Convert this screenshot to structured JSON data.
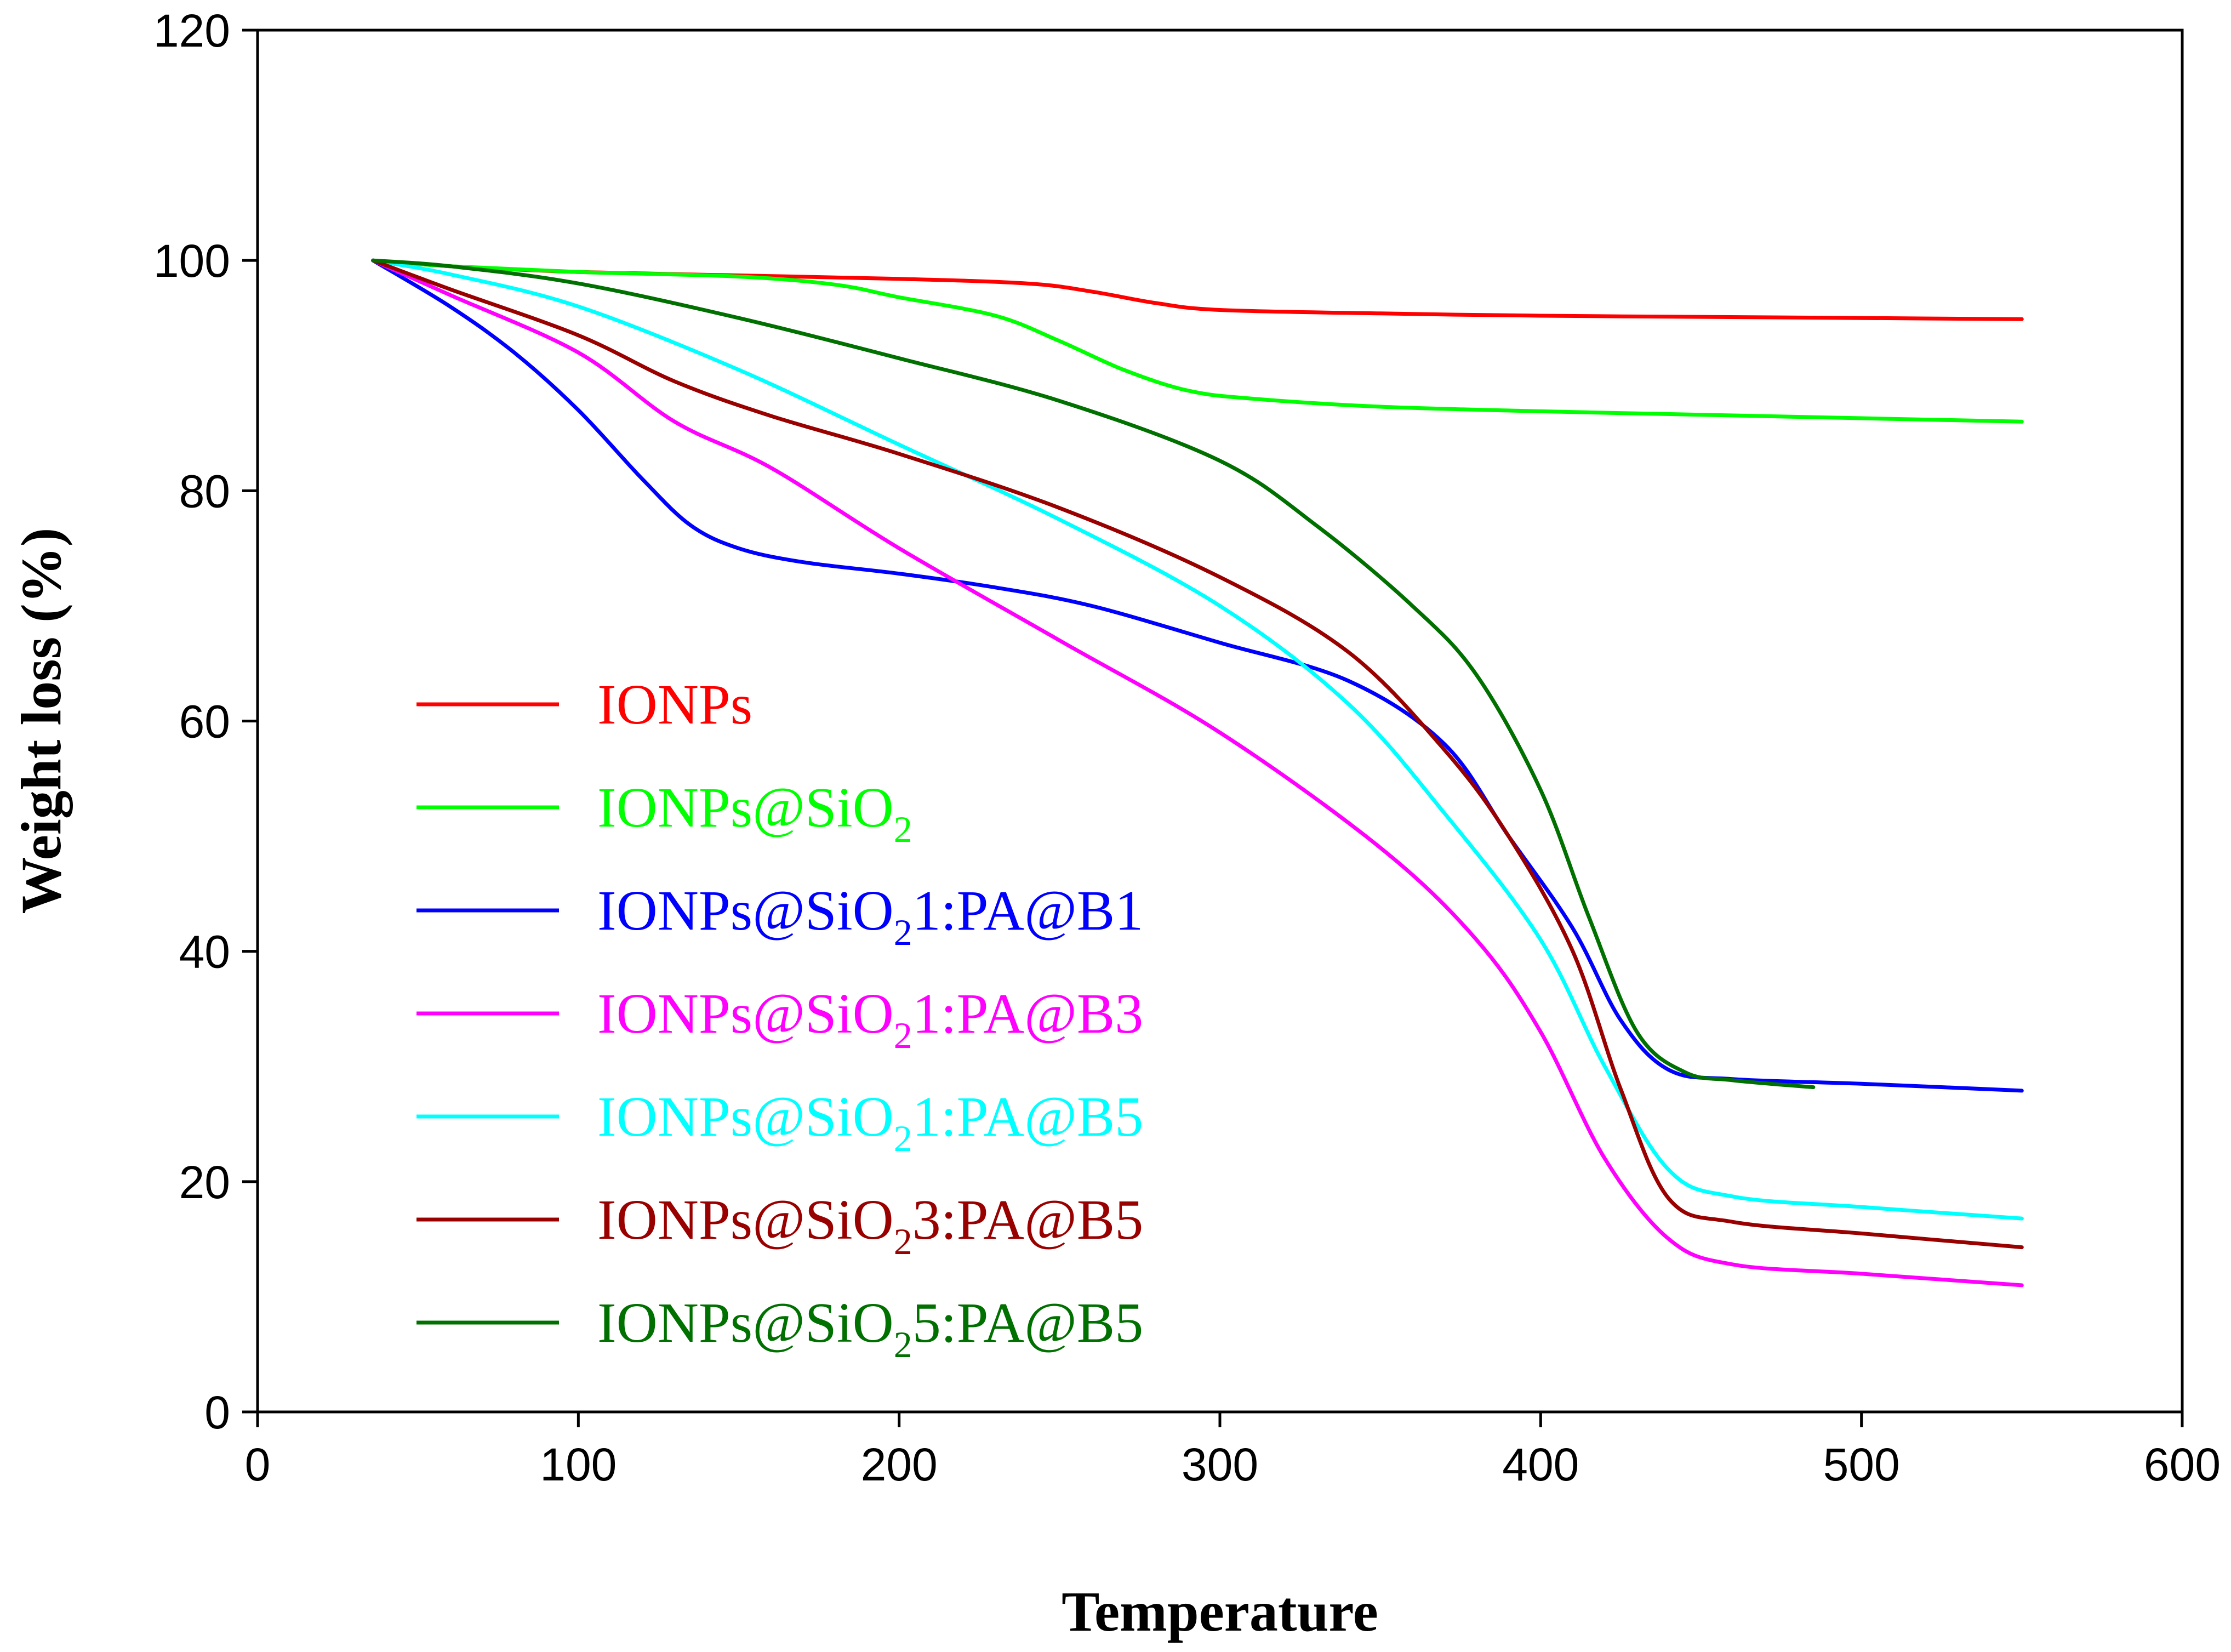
{
  "chart_data": {
    "type": "line",
    "title": "",
    "xlabel": "Temperature",
    "ylabel": "Weight loss (%)",
    "xlim": [
      0,
      600
    ],
    "ylim": [
      0,
      120
    ],
    "xticks": [
      0,
      100,
      200,
      300,
      400,
      500,
      600
    ],
    "yticks": [
      0,
      20,
      40,
      60,
      80,
      100,
      120
    ],
    "grid": false,
    "legend_position": "center-left",
    "series": [
      {
        "name": "IONPs",
        "label_main": "IONPs",
        "label_sub": "",
        "label_tail": "",
        "color": "#ff0000",
        "x": [
          36,
          60,
          100,
          150,
          200,
          240,
          260,
          280,
          300,
          350,
          400,
          450,
          500,
          550
        ],
        "y": [
          100,
          99.5,
          99.0,
          98.7,
          98.4,
          98.0,
          97.3,
          96.3,
          95.7,
          95.4,
          95.2,
          95.1,
          95.0,
          94.9
        ]
      },
      {
        "name": "IONPs@SiO2",
        "label_main": "IONPs@SiO",
        "label_sub": "2",
        "label_tail": "",
        "color": "#00ff00",
        "x": [
          36,
          60,
          100,
          150,
          180,
          200,
          230,
          250,
          270,
          290,
          310,
          350,
          400,
          450,
          500,
          550
        ],
        "y": [
          100,
          99.5,
          99.0,
          98.6,
          97.9,
          96.8,
          95.2,
          93.0,
          90.5,
          88.7,
          88.0,
          87.3,
          86.9,
          86.6,
          86.3,
          86.0
        ]
      },
      {
        "name": "IONPs@SiO2 1:PA@B1",
        "label_main": "IONPs@SiO",
        "label_sub": "2",
        "label_tail": "1:PA@B1",
        "color": "#0000ff",
        "x": [
          36,
          60,
          80,
          100,
          120,
          135,
          150,
          170,
          200,
          230,
          260,
          300,
          340,
          370,
          390,
          410,
          425,
          440,
          460,
          500,
          550
        ],
        "y": [
          100,
          96.0,
          92.0,
          87.0,
          81.0,
          77.0,
          75.0,
          73.8,
          72.8,
          71.6,
          70.0,
          66.8,
          63.5,
          58.0,
          50.0,
          42.0,
          34.0,
          29.7,
          28.9,
          28.5,
          27.9
        ]
      },
      {
        "name": "IONPs@SiO2 1:PA@B3",
        "label_main": "IONPs@SiO",
        "label_sub": "2",
        "label_tail": "1:PA@B3",
        "color": "#ff00ff",
        "x": [
          36,
          60,
          100,
          130,
          160,
          200,
          250,
          300,
          350,
          380,
          400,
          420,
          440,
          460,
          500,
          550
        ],
        "y": [
          100,
          97.0,
          92.0,
          86.0,
          82.0,
          75.0,
          67.0,
          59.0,
          49.0,
          41.0,
          33.0,
          22.0,
          15.0,
          12.8,
          12.0,
          11.0
        ]
      },
      {
        "name": "IONPs@SiO2 1:PA@B5",
        "label_main": "IONPs@SiO",
        "label_sub": "2",
        "label_tail": "1:PA@B5",
        "color": "#00ffff",
        "x": [
          36,
          60,
          100,
          150,
          200,
          250,
          300,
          340,
          370,
          400,
          420,
          440,
          460,
          500,
          550
        ],
        "y": [
          100,
          98.8,
          96.0,
          90.5,
          84.0,
          77.5,
          70.0,
          61.5,
          52.0,
          41.0,
          30.0,
          21.0,
          18.7,
          17.8,
          16.8
        ]
      },
      {
        "name": "IONPs@SiO2 3:PA@B5",
        "label_main": "IONPs@SiO",
        "label_sub": "2",
        "label_tail": "3:PA@B5",
        "color": "#990000",
        "x": [
          36,
          60,
          100,
          130,
          160,
          200,
          250,
          300,
          340,
          370,
          390,
          410,
          425,
          440,
          460,
          500,
          550
        ],
        "y": [
          100,
          97.5,
          93.5,
          89.5,
          86.5,
          83.2,
          78.5,
          72.5,
          66.0,
          57.5,
          50.0,
          40.0,
          28.0,
          18.5,
          16.5,
          15.5,
          14.3
        ]
      },
      {
        "name": "IONPs@SiO2 5:PA@B5",
        "label_main": "IONPs@SiO",
        "label_sub": "2",
        "label_tail": "5:PA@B5",
        "color": "#007000",
        "x": [
          36,
          60,
          100,
          150,
          200,
          250,
          300,
          330,
          360,
          380,
          400,
          415,
          430,
          445,
          460,
          485
        ],
        "y": [
          100,
          99.5,
          98.0,
          95.0,
          91.5,
          87.8,
          82.6,
          77.0,
          70.0,
          64.0,
          54.0,
          43.0,
          33.0,
          29.5,
          28.8,
          28.2
        ]
      }
    ]
  }
}
